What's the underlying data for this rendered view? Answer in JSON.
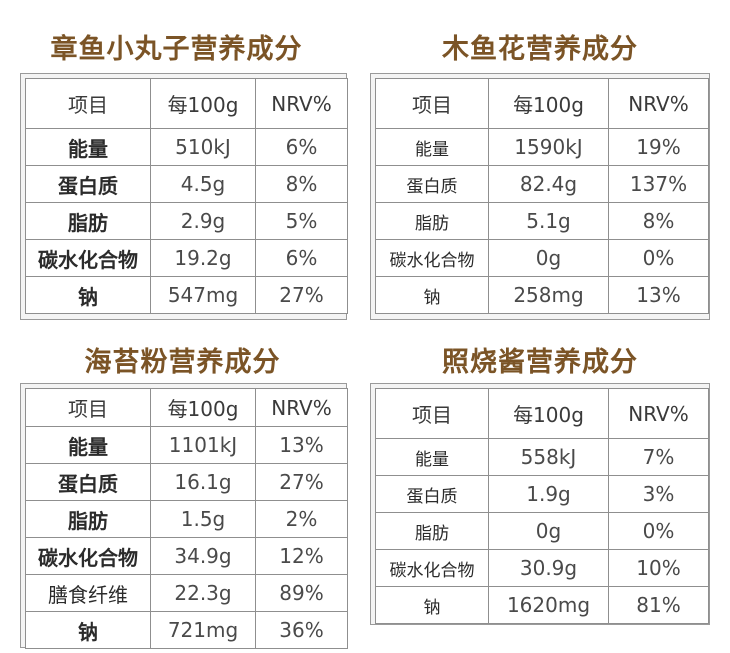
{
  "header_row": {
    "item": "项目",
    "per100g": "每100g",
    "nrv": "NRV%"
  },
  "panels": [
    {
      "title": "章鱼小丸子营养成分",
      "rows": [
        {
          "name": "能量",
          "value": "510kJ",
          "nrv": "6%"
        },
        {
          "name": "蛋白质",
          "value": "4.5g",
          "nrv": "8%"
        },
        {
          "name": "脂肪",
          "value": "2.9g",
          "nrv": "5%"
        },
        {
          "name": "碳水化合物",
          "value": "19.2g",
          "nrv": "6%"
        },
        {
          "name": "钠",
          "value": "547mg",
          "nrv": "27%"
        }
      ]
    },
    {
      "title": "木鱼花营养成分",
      "rows": [
        {
          "name": "能量",
          "value": "1590kJ",
          "nrv": "19%"
        },
        {
          "name": "蛋白质",
          "value": "82.4g",
          "nrv": "137%"
        },
        {
          "name": "脂肪",
          "value": "5.1g",
          "nrv": "8%"
        },
        {
          "name": "碳水化合物",
          "value": "0g",
          "nrv": "0%"
        },
        {
          "name": "钠",
          "value": "258mg",
          "nrv": "13%"
        }
      ]
    },
    {
      "title": "海苔粉营养成分",
      "rows": [
        {
          "name": "能量",
          "value": "1101kJ",
          "nrv": "13%"
        },
        {
          "name": "蛋白质",
          "value": "16.1g",
          "nrv": "27%"
        },
        {
          "name": "脂肪",
          "value": "1.5g",
          "nrv": "2%"
        },
        {
          "name": "碳水化合物",
          "value": "34.9g",
          "nrv": "12%"
        },
        {
          "name": "膳食纤维",
          "value": "22.3g",
          "nrv": "89%"
        },
        {
          "name": "钠",
          "value": "721mg",
          "nrv": "36%"
        }
      ]
    },
    {
      "title": "照烧酱营养成分",
      "rows": [
        {
          "name": "能量",
          "value": "558kJ",
          "nrv": "7%"
        },
        {
          "name": "蛋白质",
          "value": "1.9g",
          "nrv": "3%"
        },
        {
          "name": "脂肪",
          "value": "0g",
          "nrv": "0%"
        },
        {
          "name": "碳水化合物",
          "value": "30.9g",
          "nrv": "10%"
        },
        {
          "name": "钠",
          "value": "1620mg",
          "nrv": "81%"
        }
      ]
    }
  ]
}
